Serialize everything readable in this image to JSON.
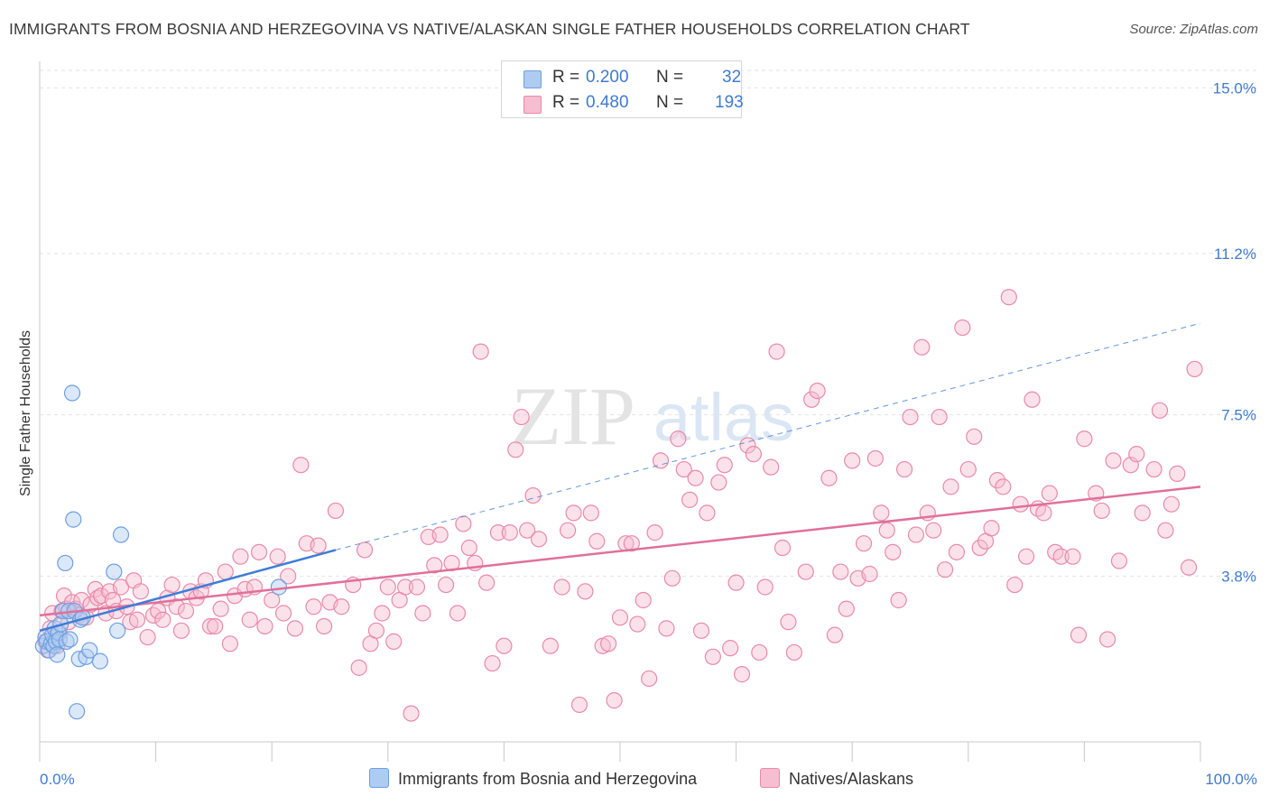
{
  "header": {
    "title": "IMMIGRANTS FROM BOSNIA AND HERZEGOVINA VS NATIVE/ALASKAN SINGLE FATHER HOUSEHOLDS CORRELATION CHART",
    "source": "Source: ZipAtlas.com"
  },
  "watermark": {
    "zip": "ZIP",
    "atlas": "atlas"
  },
  "legend": {
    "rows": [
      {
        "r_label": "R =",
        "r_value": "0.200",
        "n_label": "N =",
        "n_value": "32",
        "color": "#aecbf2",
        "border": "#6f9fe0"
      },
      {
        "r_label": "R =",
        "r_value": "0.480",
        "n_label": "N =",
        "n_value": "193",
        "color": "#f7bdd0",
        "border": "#e88aa8"
      }
    ]
  },
  "bottom_legend": {
    "series1": "Immigrants from Bosnia and Herzegovina",
    "series2": "Natives/Alaskans"
  },
  "chart_data": {
    "type": "scatter",
    "title": "IMMIGRANTS FROM BOSNIA AND HERZEGOVINA VS NATIVE/ALASKAN SINGLE FATHER HOUSEHOLDS CORRELATION CHART",
    "xlabel": "",
    "ylabel": "Single Father Households",
    "xlim": [
      0,
      100
    ],
    "ylim": [
      0,
      15.4
    ],
    "x_tick_labels": [
      "0.0%",
      "100.0%"
    ],
    "y_ticks": [
      3.8,
      7.5,
      11.2,
      15.0
    ],
    "y_tick_labels": [
      "3.8%",
      "7.5%",
      "11.2%",
      "15.0%"
    ],
    "grid": true,
    "legend_position": "top-center",
    "series": [
      {
        "name": "Immigrants from Bosnia and Herzegovina",
        "color": "#6f9fe0",
        "fill": "#aecbf2",
        "R": 0.2,
        "N": 32,
        "trend": {
          "x0": 0,
          "y0": 2.55,
          "x1": 25.5,
          "y1": 4.4,
          "dash_to_x": 100,
          "dash_to_y": 9.6,
          "color": "#3d7dd8"
        },
        "points": [
          [
            0.3,
            2.2
          ],
          [
            0.5,
            2.4
          ],
          [
            0.6,
            2.3
          ],
          [
            0.8,
            2.1
          ],
          [
            1.0,
            2.25
          ],
          [
            1.1,
            2.45
          ],
          [
            1.2,
            2.2
          ],
          [
            1.3,
            2.6
          ],
          [
            1.4,
            2.3
          ],
          [
            1.5,
            2.0
          ],
          [
            1.6,
            2.5
          ],
          [
            1.7,
            2.35
          ],
          [
            1.8,
            2.7
          ],
          [
            2.0,
            3.0
          ],
          [
            2.2,
            4.1
          ],
          [
            2.3,
            2.3
          ],
          [
            2.5,
            3.0
          ],
          [
            2.6,
            2.35
          ],
          [
            2.8,
            8.0
          ],
          [
            2.9,
            5.1
          ],
          [
            3.0,
            3.0
          ],
          [
            3.2,
            0.7
          ],
          [
            3.4,
            1.9
          ],
          [
            3.5,
            2.8
          ],
          [
            3.7,
            2.85
          ],
          [
            4.0,
            1.95
          ],
          [
            4.3,
            2.1
          ],
          [
            5.2,
            1.85
          ],
          [
            6.4,
            3.9
          ],
          [
            6.7,
            2.55
          ],
          [
            7.0,
            4.75
          ],
          [
            20.6,
            3.55
          ]
        ]
      },
      {
        "name": "Natives/Alaskans",
        "color": "#e88aa8",
        "fill": "#f7bdd0",
        "R": 0.48,
        "N": 193,
        "trend": {
          "x0": 0,
          "y0": 2.9,
          "x1": 100,
          "y1": 5.85,
          "color": "#e0709a"
        },
        "points": [
          [
            0.5,
            2.3
          ],
          [
            0.7,
            2.1
          ],
          [
            0.9,
            2.6
          ],
          [
            1.1,
            2.95
          ],
          [
            1.3,
            2.4
          ],
          [
            1.5,
            2.2
          ],
          [
            1.7,
            2.5
          ],
          [
            1.9,
            3.0
          ],
          [
            2.1,
            3.35
          ],
          [
            2.3,
            3.05
          ],
          [
            2.5,
            2.75
          ],
          [
            2.8,
            3.2
          ],
          [
            3.1,
            3.05
          ],
          [
            3.4,
            2.9
          ],
          [
            3.6,
            3.25
          ],
          [
            4.0,
            2.85
          ],
          [
            4.4,
            3.15
          ],
          [
            4.8,
            3.5
          ],
          [
            5.0,
            3.3
          ],
          [
            5.3,
            3.35
          ],
          [
            5.7,
            2.95
          ],
          [
            6.0,
            3.45
          ],
          [
            6.3,
            3.25
          ],
          [
            6.6,
            3.0
          ],
          [
            7.0,
            3.55
          ],
          [
            7.5,
            3.1
          ],
          [
            7.8,
            2.75
          ],
          [
            8.1,
            3.7
          ],
          [
            8.4,
            2.8
          ],
          [
            8.7,
            3.45
          ],
          [
            9.3,
            2.4
          ],
          [
            9.8,
            2.9
          ],
          [
            10.2,
            3.0
          ],
          [
            10.6,
            2.8
          ],
          [
            11.0,
            3.3
          ],
          [
            11.4,
            3.6
          ],
          [
            11.8,
            3.1
          ],
          [
            12.2,
            2.55
          ],
          [
            12.6,
            3.0
          ],
          [
            13.0,
            3.45
          ],
          [
            13.5,
            3.3
          ],
          [
            13.9,
            3.45
          ],
          [
            14.3,
            3.7
          ],
          [
            14.7,
            2.65
          ],
          [
            15.1,
            2.65
          ],
          [
            15.6,
            3.05
          ],
          [
            16.0,
            3.9
          ],
          [
            16.4,
            2.25
          ],
          [
            16.8,
            3.35
          ],
          [
            17.3,
            4.25
          ],
          [
            17.7,
            3.5
          ],
          [
            18.1,
            2.8
          ],
          [
            18.5,
            3.55
          ],
          [
            18.9,
            4.35
          ],
          [
            19.4,
            2.65
          ],
          [
            20.0,
            3.25
          ],
          [
            20.5,
            4.25
          ],
          [
            21.0,
            2.95
          ],
          [
            21.4,
            3.8
          ],
          [
            22.0,
            2.6
          ],
          [
            22.5,
            6.35
          ],
          [
            23.0,
            4.55
          ],
          [
            23.6,
            3.1
          ],
          [
            24.0,
            4.5
          ],
          [
            24.5,
            2.65
          ],
          [
            25.0,
            3.2
          ],
          [
            25.5,
            5.3
          ],
          [
            26.0,
            3.1
          ],
          [
            27.0,
            3.6
          ],
          [
            27.5,
            1.7
          ],
          [
            28.0,
            4.4
          ],
          [
            28.5,
            2.25
          ],
          [
            29.0,
            2.55
          ],
          [
            29.5,
            2.95
          ],
          [
            30.0,
            3.55
          ],
          [
            30.5,
            2.3
          ],
          [
            31.0,
            3.25
          ],
          [
            31.5,
            3.55
          ],
          [
            32.0,
            0.65
          ],
          [
            32.5,
            3.55
          ],
          [
            33.0,
            2.95
          ],
          [
            33.5,
            4.7
          ],
          [
            34.0,
            4.05
          ],
          [
            34.5,
            4.75
          ],
          [
            35.0,
            3.6
          ],
          [
            35.5,
            4.1
          ],
          [
            36.0,
            2.95
          ],
          [
            36.5,
            5.0
          ],
          [
            37.0,
            4.45
          ],
          [
            37.5,
            4.1
          ],
          [
            38.0,
            8.95
          ],
          [
            38.5,
            3.65
          ],
          [
            39.0,
            1.8
          ],
          [
            39.5,
            4.8
          ],
          [
            40.0,
            2.2
          ],
          [
            40.5,
            4.8
          ],
          [
            41.0,
            6.7
          ],
          [
            41.5,
            7.45
          ],
          [
            42.0,
            4.85
          ],
          [
            42.5,
            5.65
          ],
          [
            43.0,
            4.65
          ],
          [
            44.0,
            2.2
          ],
          [
            45.0,
            3.55
          ],
          [
            45.5,
            4.85
          ],
          [
            46.0,
            5.25
          ],
          [
            46.5,
            0.85
          ],
          [
            47.0,
            3.45
          ],
          [
            47.5,
            5.25
          ],
          [
            48.0,
            4.6
          ],
          [
            48.5,
            2.2
          ],
          [
            49.0,
            2.25
          ],
          [
            49.5,
            0.95
          ],
          [
            50.0,
            2.85
          ],
          [
            50.5,
            4.55
          ],
          [
            51.0,
            4.55
          ],
          [
            51.5,
            2.7
          ],
          [
            52.0,
            3.25
          ],
          [
            52.5,
            1.45
          ],
          [
            53.0,
            4.8
          ],
          [
            53.5,
            6.45
          ],
          [
            54.0,
            2.6
          ],
          [
            54.5,
            3.75
          ],
          [
            55.0,
            6.95
          ],
          [
            55.5,
            6.25
          ],
          [
            56.0,
            5.55
          ],
          [
            56.5,
            6.05
          ],
          [
            57.0,
            2.55
          ],
          [
            57.5,
            5.25
          ],
          [
            58.0,
            1.95
          ],
          [
            58.5,
            5.95
          ],
          [
            59.0,
            6.35
          ],
          [
            59.5,
            2.15
          ],
          [
            60.0,
            3.65
          ],
          [
            60.5,
            1.55
          ],
          [
            61.0,
            6.8
          ],
          [
            61.5,
            6.6
          ],
          [
            62.0,
            2.05
          ],
          [
            62.5,
            3.55
          ],
          [
            63.0,
            6.3
          ],
          [
            63.5,
            8.95
          ],
          [
            64.0,
            4.45
          ],
          [
            64.5,
            2.75
          ],
          [
            65.0,
            2.05
          ],
          [
            66.0,
            3.9
          ],
          [
            66.5,
            7.85
          ],
          [
            67.0,
            8.05
          ],
          [
            68.0,
            6.05
          ],
          [
            68.5,
            2.45
          ],
          [
            69.0,
            3.9
          ],
          [
            69.5,
            3.05
          ],
          [
            70.0,
            6.45
          ],
          [
            70.5,
            3.75
          ],
          [
            71.0,
            4.55
          ],
          [
            71.5,
            3.85
          ],
          [
            72.0,
            6.5
          ],
          [
            72.5,
            5.25
          ],
          [
            73.0,
            4.85
          ],
          [
            73.5,
            4.35
          ],
          [
            74.0,
            3.25
          ],
          [
            74.5,
            6.25
          ],
          [
            75.0,
            7.45
          ],
          [
            75.5,
            4.75
          ],
          [
            76.0,
            9.05
          ],
          [
            76.5,
            5.25
          ],
          [
            77.0,
            4.85
          ],
          [
            77.5,
            7.45
          ],
          [
            78.0,
            3.95
          ],
          [
            78.5,
            5.85
          ],
          [
            79.0,
            4.35
          ],
          [
            79.5,
            9.5
          ],
          [
            80.0,
            6.25
          ],
          [
            80.5,
            7.0
          ],
          [
            81.0,
            4.45
          ],
          [
            81.5,
            4.6
          ],
          [
            82.0,
            4.9
          ],
          [
            82.5,
            6.0
          ],
          [
            83.0,
            5.85
          ],
          [
            83.5,
            10.2
          ],
          [
            84.0,
            3.6
          ],
          [
            84.5,
            5.45
          ],
          [
            85.0,
            4.25
          ],
          [
            85.5,
            7.85
          ],
          [
            86.0,
            5.35
          ],
          [
            86.5,
            5.25
          ],
          [
            87.0,
            5.7
          ],
          [
            87.5,
            4.35
          ],
          [
            88.0,
            4.25
          ],
          [
            89.0,
            4.25
          ],
          [
            89.5,
            2.45
          ],
          [
            90.0,
            6.95
          ],
          [
            91.0,
            5.7
          ],
          [
            91.5,
            5.3
          ],
          [
            92.0,
            2.35
          ],
          [
            92.5,
            6.45
          ],
          [
            93.0,
            4.15
          ],
          [
            94.0,
            6.35
          ],
          [
            94.5,
            6.6
          ],
          [
            95.0,
            5.25
          ],
          [
            96.0,
            6.25
          ],
          [
            96.5,
            7.6
          ],
          [
            97.0,
            4.85
          ],
          [
            98.0,
            6.15
          ],
          [
            99.0,
            4.0
          ],
          [
            99.5,
            8.55
          ],
          [
            97.5,
            5.45
          ]
        ]
      }
    ]
  }
}
